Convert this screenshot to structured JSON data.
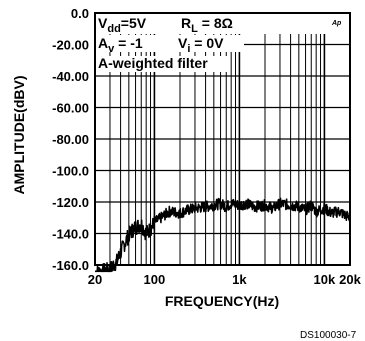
{
  "chart_data": {
    "type": "line",
    "title": "",
    "xlabel": "FREQUENCY(Hz)",
    "ylabel": "AMPLITUDE(dBV)",
    "x_scale": "log",
    "xlim": [
      20,
      20000
    ],
    "ylim": [
      -160,
      0
    ],
    "y_ticks": [
      "0.0",
      "-20.00",
      "-40.00",
      "-60.00",
      "-80.00",
      "-100.0",
      "-120.0",
      "-140.0",
      "-160.0"
    ],
    "x_ticks": [
      "20",
      "100",
      "1k",
      "10k",
      "20k"
    ],
    "grid": true,
    "annotations": {
      "vdd": {
        "main": "V",
        "sub": "dd",
        "rest": "=5V"
      },
      "rl": {
        "main": "R",
        "sub": "L",
        "rest": " = 8Ω"
      },
      "av": {
        "main": "A",
        "sub": "v",
        "rest": " = -1"
      },
      "vi": {
        "main": "V",
        "sub": "i",
        "rest": " = 0V"
      },
      "filter": "A-weighted filter",
      "logo": "Ap"
    },
    "series": [
      {
        "color": "#000000",
        "x": [
          20,
          25,
          30,
          33,
          36,
          40,
          45,
          50,
          55,
          60,
          70,
          80,
          90,
          100,
          120,
          150,
          200,
          250,
          300,
          400,
          500,
          600,
          700,
          800,
          1000,
          1200,
          1500,
          2000,
          2500,
          3000,
          4000,
          5000,
          6000,
          7000,
          8000,
          10000,
          12000,
          15000,
          17000,
          20000
        ],
        "y": [
          -165,
          -164,
          -163,
          -160,
          -158,
          -152,
          -146,
          -141,
          -138,
          -136,
          -134,
          -140,
          -137,
          -133,
          -130,
          -126,
          -127,
          -125,
          -124,
          -123,
          -122,
          -121,
          -123,
          -121,
          -122,
          -121,
          -123,
          -122,
          -124,
          -121,
          -122,
          -123,
          -125,
          -122,
          -126,
          -124,
          -127,
          -126,
          -128,
          -130
        ]
      }
    ],
    "footer": "DS100030-7"
  }
}
